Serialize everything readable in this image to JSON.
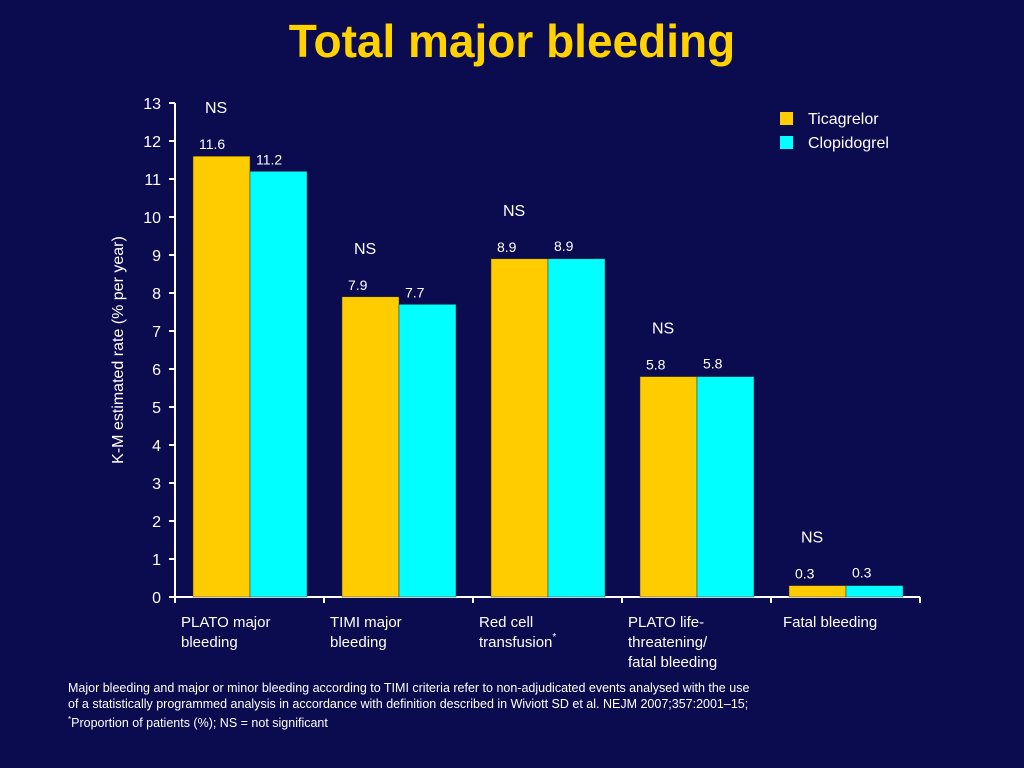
{
  "title": "Total major bleeding",
  "chart_data": {
    "type": "bar",
    "ylabel": "K-M estimated rate (% per year)",
    "ylim": [
      0,
      13
    ],
    "yticks": [
      "0",
      "1",
      "2",
      "3",
      "4",
      "5",
      "6",
      "7",
      "8",
      "9",
      "10",
      "11",
      "12",
      "13"
    ],
    "categories": [
      {
        "lines": [
          "PLATO major",
          "bleeding"
        ],
        "sup": ""
      },
      {
        "lines": [
          "TIMI major",
          "bleeding"
        ],
        "sup": ""
      },
      {
        "lines": [
          "Red cell",
          "transfusion"
        ],
        "sup": "*"
      },
      {
        "lines": [
          "PLATO life-",
          "threatening/",
          "fatal bleeding"
        ],
        "sup": ""
      },
      {
        "lines": [
          "Fatal bleeding"
        ],
        "sup": ""
      }
    ],
    "series": [
      {
        "name": "Ticagrelor",
        "color": "#ffcc00",
        "values": [
          11.6,
          7.9,
          8.9,
          5.8,
          0.3
        ],
        "labels": [
          "11.6",
          "7.9",
          "8.9",
          "5.8",
          "0.3"
        ]
      },
      {
        "name": "Clopidogrel",
        "color": "#00ffff",
        "values": [
          11.2,
          7.7,
          8.9,
          5.8,
          0.3
        ],
        "labels": [
          "11.2",
          "7.7",
          "8.9",
          "5.8",
          "0.3"
        ]
      }
    ],
    "significance": [
      "NS",
      "NS",
      "NS",
      "NS",
      "NS"
    ],
    "legend_position": "top-right",
    "grid": false
  },
  "footnote": {
    "line1": "Major bleeding and major or minor bleeding according to TIMI criteria refer to non-adjudicated events analysed with the use",
    "line2": "of a statistically programmed analysis in accordance with definition described in Wiviott SD et al. NEJM 2007;357:2001–15;",
    "line3_sup": "*",
    "line3": "Proportion of patients (%); NS = not significant"
  }
}
